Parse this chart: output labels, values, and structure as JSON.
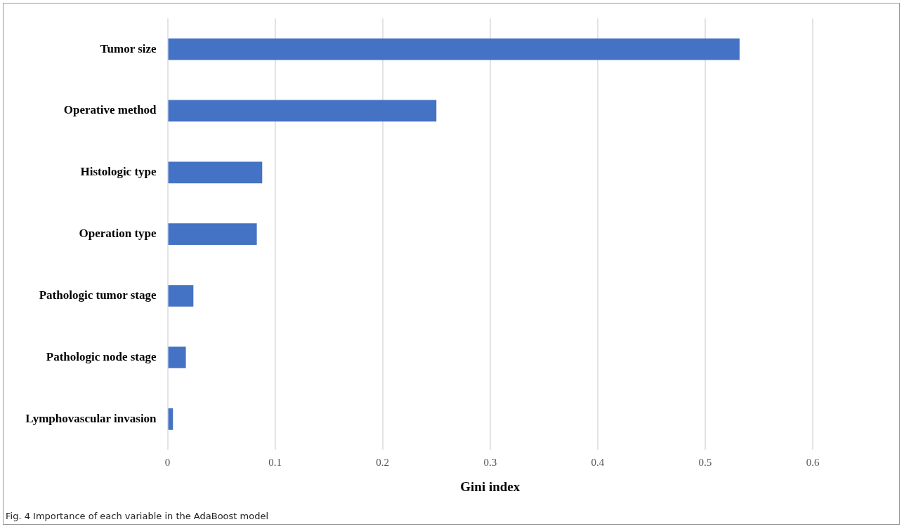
{
  "chart_data": {
    "type": "bar",
    "orientation": "horizontal",
    "categories": [
      "Tumor size",
      "Operative method",
      "Histologic type",
      "Operation type",
      "Pathologic tumor stage",
      "Pathologic node stage",
      "Lymphovascular invasion"
    ],
    "values": [
      0.532,
      0.25,
      0.088,
      0.083,
      0.024,
      0.017,
      0.005
    ],
    "color": "#4472c4",
    "xlabel": "Gini index",
    "xlim": [
      0,
      0.6
    ],
    "xticks": [
      0,
      0.1,
      0.2,
      0.3,
      0.4,
      0.5,
      0.6
    ],
    "grid": "x",
    "annotations": [
      "Fig. 4  Importance of each variable in the AdaBoost model"
    ]
  }
}
